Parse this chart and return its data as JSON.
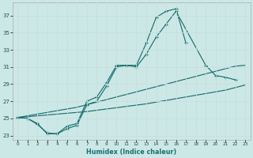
{
  "bg_color": "#cce8e6",
  "grid_color": "#b0d8d5",
  "line_color": "#1a7070",
  "xlabel": "Humidex (Indice chaleur)",
  "xlim": [
    -0.5,
    23.5
  ],
  "ylim": [
    22.5,
    38.5
  ],
  "yticks": [
    23,
    25,
    27,
    29,
    31,
    33,
    35,
    37
  ],
  "line1_x": [
    0,
    1,
    2,
    3,
    4,
    5,
    6,
    7,
    8,
    9,
    10,
    11,
    12,
    13,
    14,
    15,
    16,
    17
  ],
  "line1_y": [
    25.1,
    25.0,
    24.4,
    23.2,
    23.2,
    24.1,
    24.4,
    27.0,
    27.5,
    29.2,
    31.2,
    31.2,
    31.2,
    33.8,
    36.8,
    37.5,
    37.8,
    33.8
  ],
  "line2_x": [
    0,
    1,
    2,
    3,
    4,
    5,
    6,
    7,
    8,
    9,
    10,
    11,
    12,
    13,
    14,
    15,
    16,
    19,
    20,
    21,
    22
  ],
  "line2_y": [
    25.1,
    25.0,
    24.3,
    23.3,
    23.2,
    23.8,
    24.2,
    26.6,
    27.0,
    28.8,
    31.0,
    31.2,
    31.0,
    32.5,
    34.5,
    36.0,
    37.5,
    31.2,
    30.0,
    29.8,
    29.5
  ],
  "line3_x": [
    0,
    1,
    2,
    3,
    4,
    5,
    6,
    7,
    8,
    9,
    10,
    11,
    12,
    13,
    14,
    15,
    16,
    17,
    18,
    19,
    20,
    21,
    22,
    23
  ],
  "line3_y": [
    25.1,
    25.3,
    25.5,
    25.7,
    25.9,
    26.1,
    26.3,
    26.6,
    26.9,
    27.2,
    27.5,
    27.8,
    28.1,
    28.4,
    28.7,
    29.0,
    29.3,
    29.6,
    29.9,
    30.2,
    30.5,
    30.8,
    31.1,
    31.2
  ],
  "line4_x": [
    0,
    1,
    2,
    3,
    4,
    5,
    6,
    7,
    8,
    9,
    10,
    11,
    12,
    13,
    14,
    15,
    16,
    17,
    18,
    19,
    20,
    21,
    22,
    23
  ],
  "line4_y": [
    25.1,
    25.2,
    25.3,
    25.4,
    25.5,
    25.6,
    25.7,
    25.8,
    25.95,
    26.1,
    26.25,
    26.4,
    26.55,
    26.7,
    26.9,
    27.1,
    27.3,
    27.5,
    27.7,
    27.9,
    28.1,
    28.3,
    28.6,
    28.9
  ]
}
